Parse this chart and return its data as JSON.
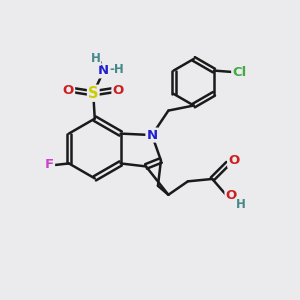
{
  "bg_color": "#ebebed",
  "bond_color": "#1a1a1a",
  "bond_width": 1.8,
  "atom_colors": {
    "N": "#2020cc",
    "O": "#cc2020",
    "S": "#cccc00",
    "F": "#cc44cc",
    "Cl": "#44aa44",
    "H": "#448888",
    "C": "#1a1a1a"
  },
  "font_size": 9.5,
  "fig_size": [
    3.0,
    3.0
  ],
  "dpi": 100
}
